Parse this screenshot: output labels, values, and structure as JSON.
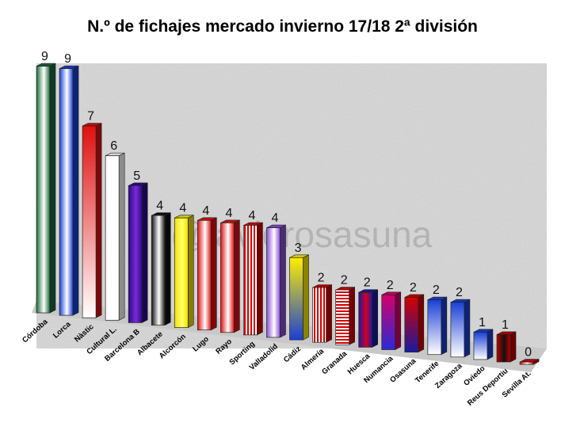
{
  "chart_data": {
    "type": "bar",
    "title": "N.º de fichajes mercado invierno 17/18 2ª división",
    "watermark": "@javierosasuna",
    "categories": [
      "Córdoba",
      "Lorca",
      "Nàstic",
      "Cultural L.",
      "Barcelona B",
      "Albacete",
      "Alcorcón",
      "Lugo",
      "Rayo",
      "Sporting",
      "Valladolid",
      "Cádiz",
      "Almería",
      "Granada",
      "Huesca",
      "Numancia",
      "Osasuna",
      "Tenerife",
      "Zaragoza",
      "Oviedo",
      "Reus Deportiu",
      "Sevilla At."
    ],
    "values": [
      9,
      9,
      7,
      6,
      5,
      4,
      4,
      4,
      4,
      4,
      4,
      3,
      2,
      2,
      2,
      2,
      2,
      2,
      2,
      1,
      1,
      0
    ],
    "ylim": [
      0,
      10
    ],
    "xlabel": "",
    "ylabel": "",
    "bar_styles": [
      {
        "c1": "#1a6b3c",
        "c2": "#ffffff",
        "pattern": "grad"
      },
      {
        "c1": "#1a3fd6",
        "c2": "#ffffff",
        "pattern": "grad"
      },
      {
        "c1": "#e01010",
        "c2": "#ffffff",
        "pattern": "vgrad"
      },
      {
        "c1": "#ffffff",
        "c2": "#ffffff",
        "pattern": "grad"
      },
      {
        "c1": "#2a0a8a",
        "c2": "#7b2bd1",
        "pattern": "grad"
      },
      {
        "c1": "#111111",
        "c2": "#ffffff",
        "pattern": "grad"
      },
      {
        "c1": "#f2e200",
        "c2": "#ffff70",
        "pattern": "grad"
      },
      {
        "c1": "#e01010",
        "c2": "#ffffff",
        "pattern": "grad"
      },
      {
        "c1": "#e01010",
        "c2": "#ffffff",
        "pattern": "grad"
      },
      {
        "c1": "#d40000",
        "c2": "#ffffff",
        "pattern": "vstripes"
      },
      {
        "c1": "#8a4fd6",
        "c2": "#ffffff",
        "pattern": "grad"
      },
      {
        "c1": "#ffee00",
        "c2": "#1a3fd6",
        "pattern": "vgrad"
      },
      {
        "c1": "#d40000",
        "c2": "#ffffff",
        "pattern": "vstripes"
      },
      {
        "c1": "#d40000",
        "c2": "#ffffff",
        "pattern": "hstripes"
      },
      {
        "c1": "#1a1aa0",
        "c2": "#d40020",
        "pattern": "grad"
      },
      {
        "c1": "#d4006a",
        "c2": "#2a2ad6",
        "pattern": "vgrad"
      },
      {
        "c1": "#d40000",
        "c2": "#1a1aa0",
        "pattern": "vgrad"
      },
      {
        "c1": "#1a3fd6",
        "c2": "#ffffff",
        "pattern": "vgrad"
      },
      {
        "c1": "#1a3fd6",
        "c2": "#ffffff",
        "pattern": "vgrad"
      },
      {
        "c1": "#1a3fd6",
        "c2": "#ffffff",
        "pattern": "vgrad"
      },
      {
        "c1": "#c00000",
        "c2": "#111111",
        "pattern": "grad"
      },
      {
        "c1": "#d40000",
        "c2": "#ffffff",
        "pattern": "grad"
      }
    ]
  }
}
